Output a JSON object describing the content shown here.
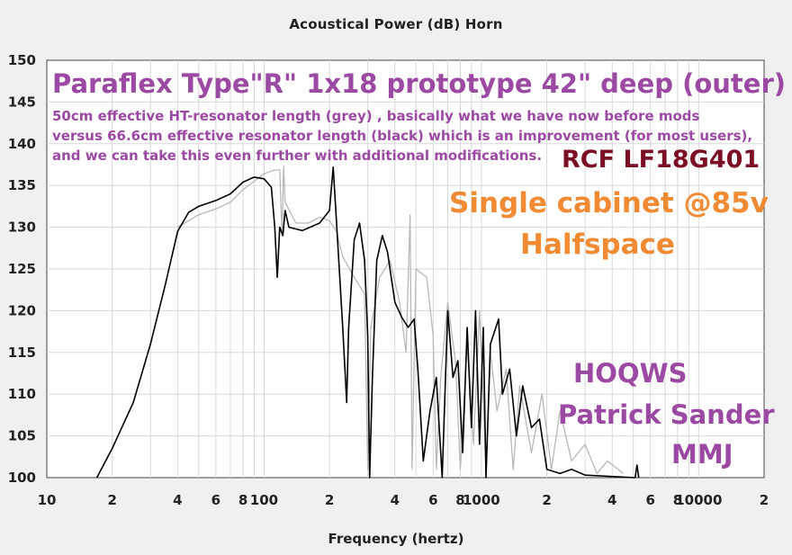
{
  "window_title": "Acoustical Power (dB)    Horn",
  "chart_data": {
    "type": "line",
    "title": "Acoustical Power (dB)    Horn",
    "xlabel": "Frequency (hertz)",
    "ylabel": "",
    "xscale": "log",
    "xlim": [
      10,
      20000
    ],
    "ylim": [
      100,
      150
    ],
    "grid": true,
    "yticks": [
      100,
      105,
      110,
      115,
      120,
      125,
      130,
      135,
      140,
      145,
      150
    ],
    "ytick_labels": [
      "100",
      "105",
      "110",
      "115",
      "120",
      "125",
      "130",
      "135",
      "140",
      "145",
      "150"
    ],
    "xticks": [
      10,
      20,
      40,
      60,
      80,
      100,
      200,
      400,
      600,
      800,
      1000,
      2000,
      4000,
      6000,
      8000,
      10000,
      20000
    ],
    "xtick_labels": [
      "10",
      "2",
      "4",
      "6",
      "8",
      "100",
      "2",
      "4",
      "6",
      "8",
      "1000",
      "2",
      "4",
      "6",
      "8",
      "10000",
      "2"
    ],
    "series": [
      {
        "color": "#b8b8b8",
        "points": [
          [
            40,
            130.0
          ],
          [
            50,
            131.5
          ],
          [
            60,
            132.2
          ],
          [
            70,
            133.0
          ],
          [
            80,
            134.5
          ],
          [
            90,
            135.5
          ],
          [
            100,
            136.4
          ],
          [
            110,
            136.8
          ],
          [
            118,
            136.9
          ],
          [
            121,
            129
          ],
          [
            123,
            137.3
          ],
          [
            125,
            133
          ],
          [
            140,
            130.5
          ],
          [
            160,
            130.5
          ],
          [
            180,
            131.2
          ],
          [
            200,
            130.8
          ],
          [
            215,
            129.5
          ],
          [
            230,
            126.5
          ],
          [
            260,
            124
          ],
          [
            290,
            122
          ],
          [
            300,
            101
          ],
          [
            310,
            118
          ],
          [
            340,
            124
          ],
          [
            380,
            126
          ],
          [
            420,
            121
          ],
          [
            450,
            115
          ],
          [
            470,
            131.5
          ],
          [
            480,
            101
          ],
          [
            500,
            125
          ],
          [
            560,
            124
          ],
          [
            600,
            117
          ],
          [
            620,
            101
          ],
          [
            650,
            112
          ],
          [
            700,
            121
          ],
          [
            760,
            114
          ],
          [
            800,
            101
          ],
          [
            860,
            116
          ],
          [
            920,
            104
          ],
          [
            980,
            120
          ],
          [
            1050,
            101
          ],
          [
            1100,
            115
          ],
          [
            1180,
            108
          ],
          [
            1300,
            113
          ],
          [
            1400,
            101
          ],
          [
            1500,
            111
          ],
          [
            1700,
            103
          ],
          [
            1900,
            110
          ],
          [
            2100,
            101
          ],
          [
            2300,
            108
          ],
          [
            2600,
            102
          ],
          [
            3000,
            104
          ],
          [
            3400,
            100.5
          ],
          [
            3800,
            102
          ],
          [
            4500,
            100.5
          ]
        ]
      },
      {
        "color": "#000000",
        "points": [
          [
            17,
            100
          ],
          [
            20,
            103.5
          ],
          [
            25,
            109
          ],
          [
            30,
            116
          ],
          [
            35,
            123
          ],
          [
            40,
            129.5
          ],
          [
            45,
            131.8
          ],
          [
            50,
            132.5
          ],
          [
            60,
            133.2
          ],
          [
            70,
            134.0
          ],
          [
            80,
            135.4
          ],
          [
            90,
            136.0
          ],
          [
            100,
            135.8
          ],
          [
            108,
            134.8
          ],
          [
            112,
            130
          ],
          [
            115,
            124
          ],
          [
            118,
            130
          ],
          [
            122,
            129
          ],
          [
            125,
            132
          ],
          [
            130,
            130
          ],
          [
            150,
            129.6
          ],
          [
            180,
            130.5
          ],
          [
            200,
            132
          ],
          [
            208,
            137.2
          ],
          [
            215,
            131
          ],
          [
            230,
            118
          ],
          [
            240,
            109
          ],
          [
            245,
            118
          ],
          [
            260,
            128.5
          ],
          [
            275,
            130.5
          ],
          [
            290,
            126
          ],
          [
            300,
            117
          ],
          [
            306,
            100
          ],
          [
            315,
            112
          ],
          [
            330,
            126
          ],
          [
            350,
            129
          ],
          [
            370,
            127
          ],
          [
            400,
            121
          ],
          [
            430,
            119.2
          ],
          [
            460,
            118
          ],
          [
            490,
            119
          ],
          [
            510,
            113
          ],
          [
            540,
            102
          ],
          [
            580,
            108
          ],
          [
            620,
            112
          ],
          [
            660,
            100
          ],
          [
            700,
            120
          ],
          [
            740,
            112
          ],
          [
            780,
            114
          ],
          [
            820,
            103
          ],
          [
            860,
            118
          ],
          [
            900,
            106
          ],
          [
            940,
            120
          ],
          [
            980,
            104
          ],
          [
            1020,
            118
          ],
          [
            1050,
            100
          ],
          [
            1100,
            116
          ],
          [
            1200,
            119
          ],
          [
            1250,
            110
          ],
          [
            1350,
            113
          ],
          [
            1450,
            105
          ],
          [
            1550,
            111
          ],
          [
            1700,
            106
          ],
          [
            1850,
            107
          ],
          [
            2000,
            101
          ],
          [
            2300,
            100.5
          ],
          [
            2600,
            101
          ],
          [
            3000,
            100.3
          ],
          [
            5100,
            100
          ],
          [
            5200,
            101.5
          ],
          [
            5300,
            100
          ]
        ]
      }
    ]
  },
  "annotations": {
    "title": "Paraflex Type\"R\" 1x18 prototype 42\" deep (outer)",
    "desc_lines": [
      "50cm effective HT-resonator length (grey) , basically what we have now before mods",
      " versus 66.6cm effective resonator length (black) which is an improvement (for most users),",
      "and we can take this even further with additional modifications."
    ],
    "model": "RCF LF18G401",
    "single": "Single cabinet @85v",
    "halfspace": "Halfspace",
    "hoqws": "HOQWS",
    "patrick": "Patrick Sander",
    "mmj": "MMJ"
  },
  "colors": {
    "plot_bg": "#ffffff",
    "grid": "#d8d8d8",
    "purple": "#9b49a3",
    "orange": "#f08a33",
    "dark_red": "#7b0f24"
  }
}
